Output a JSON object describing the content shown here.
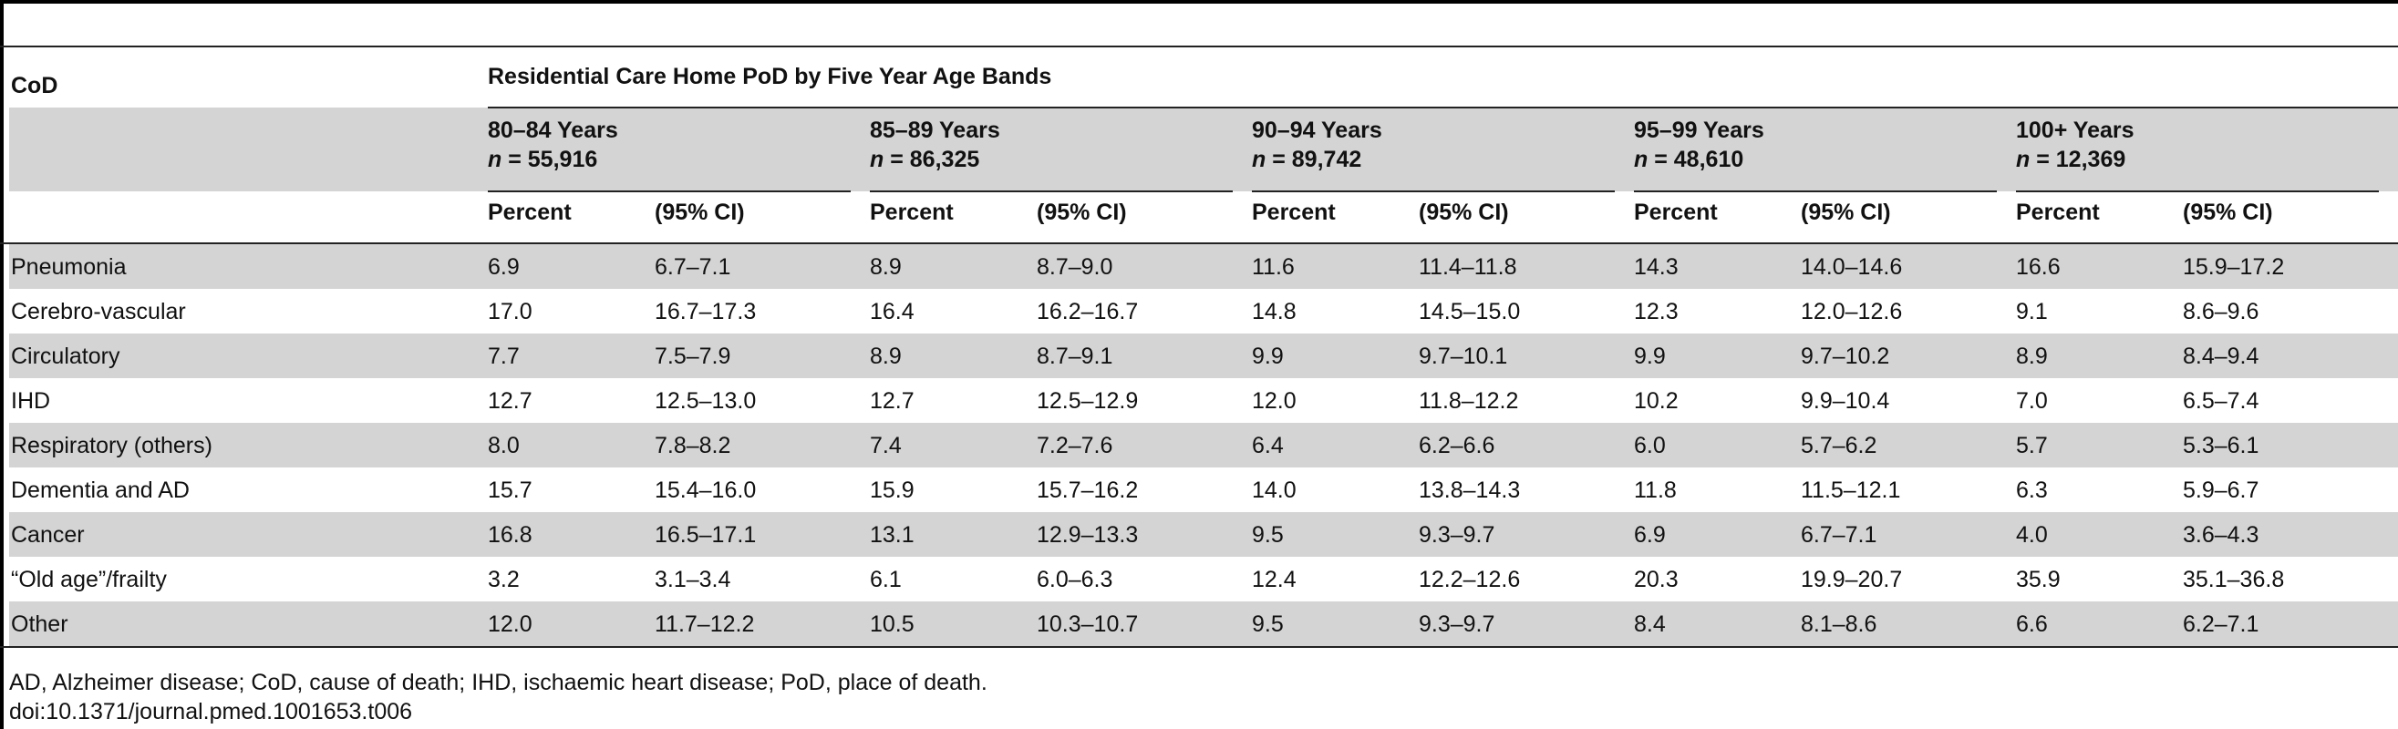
{
  "table": {
    "stub_header": "CoD",
    "spanner": "Residential Care Home PoD by Five Year Age Bands",
    "groups": [
      {
        "label": "80–84 Years",
        "n": "55,916"
      },
      {
        "label": "85–89 Years",
        "n": "86,325"
      },
      {
        "label": "90–94 Years",
        "n": "89,742"
      },
      {
        "label": "95–99 Years",
        "n": "48,610"
      },
      {
        "label": "100+ Years",
        "n": "12,369"
      }
    ],
    "n_prefix": "n",
    "n_equals": " = ",
    "subheaders": {
      "percent": "Percent",
      "ci": "(95% CI)"
    },
    "rows": [
      {
        "cod": "Pneumonia",
        "values": [
          [
            "6.9",
            "6.7–7.1"
          ],
          [
            "8.9",
            "8.7–9.0"
          ],
          [
            "11.6",
            "11.4–11.8"
          ],
          [
            "14.3",
            "14.0–14.6"
          ],
          [
            "16.6",
            "15.9–17.2"
          ]
        ]
      },
      {
        "cod": "Cerebro-vascular",
        "values": [
          [
            "17.0",
            "16.7–17.3"
          ],
          [
            "16.4",
            "16.2–16.7"
          ],
          [
            "14.8",
            "14.5–15.0"
          ],
          [
            "12.3",
            "12.0–12.6"
          ],
          [
            "9.1",
            "8.6–9.6"
          ]
        ]
      },
      {
        "cod": "Circulatory",
        "values": [
          [
            "7.7",
            "7.5–7.9"
          ],
          [
            "8.9",
            "8.7–9.1"
          ],
          [
            "9.9",
            "9.7–10.1"
          ],
          [
            "9.9",
            "9.7–10.2"
          ],
          [
            "8.9",
            "8.4–9.4"
          ]
        ]
      },
      {
        "cod": "IHD",
        "values": [
          [
            "12.7",
            "12.5–13.0"
          ],
          [
            "12.7",
            "12.5–12.9"
          ],
          [
            "12.0",
            "11.8–12.2"
          ],
          [
            "10.2",
            "9.9–10.4"
          ],
          [
            "7.0",
            "6.5–7.4"
          ]
        ]
      },
      {
        "cod": "Respiratory (others)",
        "values": [
          [
            "8.0",
            "7.8–8.2"
          ],
          [
            "7.4",
            "7.2–7.6"
          ],
          [
            "6.4",
            "6.2–6.6"
          ],
          [
            "6.0",
            "5.7–6.2"
          ],
          [
            "5.7",
            "5.3–6.1"
          ]
        ]
      },
      {
        "cod": "Dementia and AD",
        "values": [
          [
            "15.7",
            "15.4–16.0"
          ],
          [
            "15.9",
            "15.7–16.2"
          ],
          [
            "14.0",
            "13.8–14.3"
          ],
          [
            "11.8",
            "11.5–12.1"
          ],
          [
            "6.3",
            "5.9–6.7"
          ]
        ]
      },
      {
        "cod": "Cancer",
        "values": [
          [
            "16.8",
            "16.5–17.1"
          ],
          [
            "13.1",
            "12.9–13.3"
          ],
          [
            "9.5",
            "9.3–9.7"
          ],
          [
            "6.9",
            "6.7–7.1"
          ],
          [
            "4.0",
            "3.6–4.3"
          ]
        ]
      },
      {
        "cod": "“Old age”/frailty",
        "values": [
          [
            "3.2",
            "3.1–3.4"
          ],
          [
            "6.1",
            "6.0–6.3"
          ],
          [
            "12.4",
            "12.2–12.6"
          ],
          [
            "20.3",
            "19.9–20.7"
          ],
          [
            "35.9",
            "35.1–36.8"
          ]
        ]
      },
      {
        "cod": "Other",
        "values": [
          [
            "12.0",
            "11.7–12.2"
          ],
          [
            "10.5",
            "10.3–10.7"
          ],
          [
            "9.5",
            "9.3–9.7"
          ],
          [
            "8.4",
            "8.1–8.6"
          ],
          [
            "6.6",
            "6.2–7.1"
          ]
        ]
      }
    ]
  },
  "footnote": "AD, Alzheimer disease; CoD, cause of death; IHD, ischaemic heart disease; PoD, place of death.",
  "doi": "doi:10.1371/journal.pmed.1001653.t006",
  "colors": {
    "band": "#d4d4d4",
    "rule": "#222222"
  }
}
